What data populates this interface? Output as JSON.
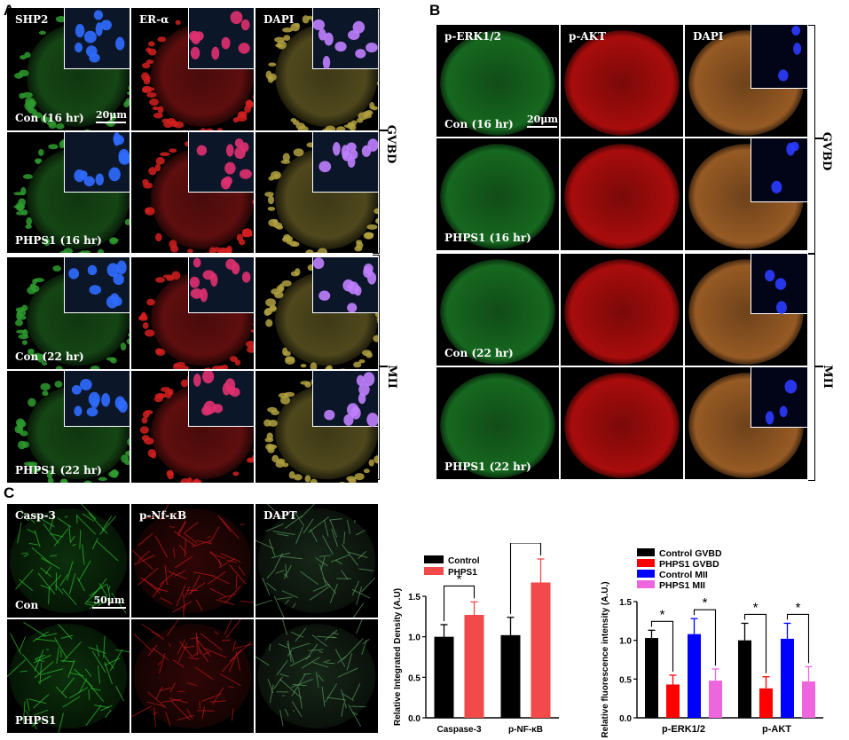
{
  "panels": {
    "A": {
      "letter": "A",
      "columns": [
        "SHP2",
        "ER-α",
        "DAPI"
      ],
      "rows": [
        "Con (16 hr)",
        "PHPS1 (16 hr)",
        "Con (22 hr)",
        "PHPS1 (22 hr)"
      ],
      "scale_bar": "20μm",
      "stage_labels": [
        "GVBD",
        "MII"
      ]
    },
    "B": {
      "letter": "B",
      "columns": [
        "p-ERK1/2",
        "p-AKT",
        "DAPI"
      ],
      "rows": [
        "Con (16 hr)",
        "PHPS1 (16 hr)",
        "Con (22 hr)",
        "PHPS1 (22 hr)"
      ],
      "scale_bar": "20μm",
      "stage_labels": [
        "GVBD",
        "MII"
      ]
    },
    "C": {
      "letter": "C",
      "columns": [
        "Casp-3",
        "p-Nf-κB",
        "DAPT"
      ],
      "rows": [
        "Con",
        "PHPS1"
      ],
      "scale_bar": "50μm"
    }
  },
  "chart_data": [
    {
      "type": "bar",
      "ylabel": "Relative Integrated Density (A.U)",
      "categories": [
        "Caspase-3",
        "p-NF-κB"
      ],
      "ylim": [
        0,
        1.5
      ],
      "yticks": [
        "0.0",
        "0.5",
        "1.0",
        "1.5"
      ],
      "series": [
        {
          "name": "Control",
          "color": "#000000",
          "values": [
            1.0,
            1.02
          ],
          "errors": [
            0.15,
            0.22
          ]
        },
        {
          "name": "PHPS1",
          "color": "#f24a4a",
          "values": [
            1.27,
            1.67
          ],
          "errors": [
            0.16,
            0.29
          ]
        }
      ],
      "significance": [
        "*",
        "**"
      ],
      "legend_position": "top-left"
    },
    {
      "type": "bar",
      "ylabel": "Relative fluorescence intensity (A.U.)",
      "categories": [
        "p-ERK1/2",
        "p-AKT"
      ],
      "ylim": [
        0,
        1.5
      ],
      "yticks": [
        "0.0",
        "0.5",
        "1.0",
        "1.5"
      ],
      "series": [
        {
          "name": "Control GVBD",
          "color": "#000000",
          "values": [
            1.03,
            1.0
          ],
          "errors": [
            0.1,
            0.22
          ]
        },
        {
          "name": "PHPS1 GVBD",
          "color": "#ff0000",
          "values": [
            0.43,
            0.38
          ],
          "errors": [
            0.12,
            0.15
          ]
        },
        {
          "name": "Control MII",
          "color": "#0000ff",
          "values": [
            1.08,
            1.02
          ],
          "errors": [
            0.2,
            0.2
          ]
        },
        {
          "name": "PHPS1 MII",
          "color": "#ee66dd",
          "values": [
            0.48,
            0.47
          ],
          "errors": [
            0.15,
            0.19
          ]
        }
      ],
      "significance": [
        "*",
        "*",
        "*",
        "*"
      ],
      "legend_position": "top"
    }
  ]
}
